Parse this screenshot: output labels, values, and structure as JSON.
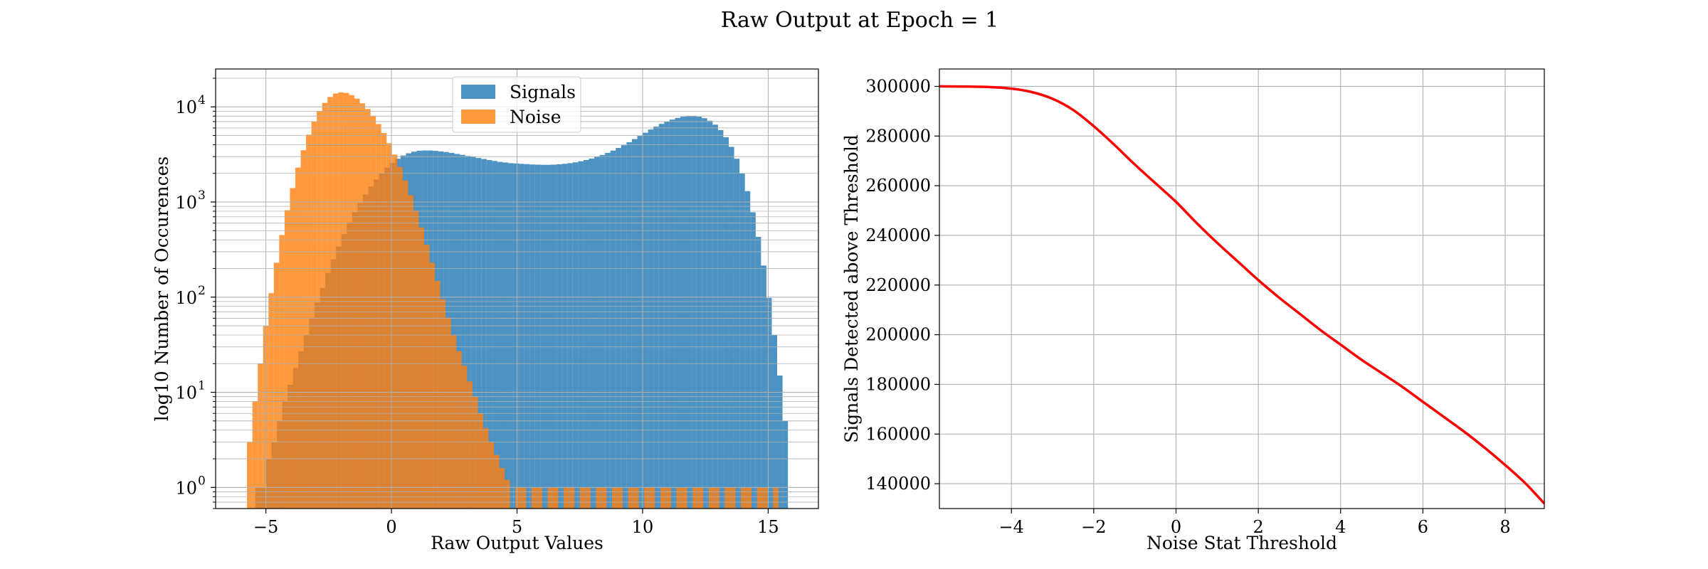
{
  "figure": {
    "suptitle": "Raw Output at Epoch = 1"
  },
  "chart_data": [
    {
      "type": "histogram",
      "xlabel": "Raw Output Values",
      "ylabel": "log10 Number of Occurences",
      "yscale": "log",
      "xlim": [
        -7,
        17
      ],
      "ylim": [
        0.6,
        25000
      ],
      "xticks": [
        -5,
        0,
        5,
        10,
        15
      ],
      "yticks": [
        {
          "value": 1,
          "label": "10",
          "exp": "0"
        },
        {
          "value": 10,
          "label": "10",
          "exp": "1"
        },
        {
          "value": 100,
          "label": "10",
          "exp": "2"
        },
        {
          "value": 1000,
          "label": "10",
          "exp": "3"
        },
        {
          "value": 10000,
          "label": "10",
          "exp": "4"
        }
      ],
      "grid": true,
      "legend": "upper center",
      "series": [
        {
          "name": "Signals",
          "color": "#1f77b4",
          "alpha": 0.8,
          "bin_start": -5.42,
          "bin_width": 0.2142,
          "counts": [
            1,
            1,
            2,
            3,
            5,
            8,
            12,
            18,
            27,
            40,
            60,
            88,
            125,
            180,
            250,
            340,
            460,
            610,
            780,
            980,
            1200,
            1450,
            1720,
            2000,
            2300,
            2580,
            2850,
            3080,
            3250,
            3380,
            3460,
            3480,
            3480,
            3450,
            3400,
            3350,
            3280,
            3200,
            3130,
            3050,
            2980,
            2900,
            2830,
            2760,
            2700,
            2640,
            2600,
            2560,
            2540,
            2520,
            2500,
            2480,
            2470,
            2460,
            2460,
            2470,
            2490,
            2520,
            2560,
            2610,
            2680,
            2760,
            2860,
            2980,
            3120,
            3280,
            3470,
            3700,
            3950,
            4250,
            4580,
            4950,
            5350,
            5780,
            6200,
            6620,
            7000,
            7350,
            7650,
            7880,
            8000,
            8000,
            7880,
            7600,
            7150,
            6500,
            5700,
            4800,
            3800,
            2850,
            2000,
            1300,
            780,
            430,
            215,
            98,
            40,
            15,
            5
          ],
          "scattered_zero_bins": true
        },
        {
          "name": "Noise",
          "color": "#ff7f0e",
          "alpha": 0.8,
          "bin_start": -5.75,
          "bin_width": 0.2137,
          "counts": [
            3,
            8,
            20,
            50,
            110,
            230,
            450,
            820,
            1400,
            2300,
            3500,
            5100,
            7000,
            9000,
            11000,
            12700,
            13800,
            14200,
            14000,
            13300,
            12200,
            10900,
            9500,
            8000,
            6600,
            5300,
            4150,
            3150,
            2330,
            1680,
            1180,
            810,
            540,
            355,
            230,
            148,
            95,
            61,
            40,
            27,
            19,
            13,
            9,
            6,
            4.2,
            3,
            2.2,
            1.6,
            1.2,
            1,
            1,
            1,
            1,
            1,
            1,
            1,
            1,
            1,
            1,
            1,
            1,
            1,
            1,
            1,
            1,
            1,
            1,
            1,
            1,
            1,
            1,
            1,
            1,
            1,
            1,
            1,
            1,
            1,
            1,
            1,
            1,
            1,
            1,
            1,
            1,
            1,
            1,
            1,
            1,
            1,
            1,
            1,
            1,
            1,
            1,
            1,
            1,
            1,
            1
          ],
          "scattered_zero_bins": true
        }
      ]
    },
    {
      "type": "line",
      "xlabel": "Noise Stat Threshold",
      "ylabel": "Signals Detected above Threshold",
      "xlim": [
        -5.75,
        8.95
      ],
      "ylim": [
        130000,
        307000
      ],
      "xticks": [
        -4,
        -2,
        0,
        2,
        4,
        6,
        8
      ],
      "yticks": [
        140000,
        160000,
        180000,
        200000,
        220000,
        240000,
        260000,
        280000,
        300000
      ],
      "grid": true,
      "series": [
        {
          "color": "#ff0000",
          "x": [
            -5.75,
            -5.0,
            -4.5,
            -4.0,
            -3.5,
            -3.0,
            -2.5,
            -2.0,
            -1.5,
            -1.0,
            -0.5,
            0.0,
            0.5,
            1.0,
            1.5,
            2.0,
            2.5,
            3.0,
            3.5,
            4.0,
            4.5,
            5.0,
            5.5,
            6.0,
            6.5,
            7.0,
            7.5,
            8.0,
            8.5,
            8.95
          ],
          "y": [
            300000,
            299900,
            299700,
            299100,
            297700,
            295000,
            290500,
            284000,
            276500,
            268500,
            261000,
            253500,
            245000,
            237000,
            229500,
            222000,
            215000,
            208500,
            202000,
            196000,
            190000,
            184500,
            179000,
            173000,
            167000,
            161000,
            154500,
            147500,
            140000,
            132000
          ]
        }
      ]
    }
  ]
}
